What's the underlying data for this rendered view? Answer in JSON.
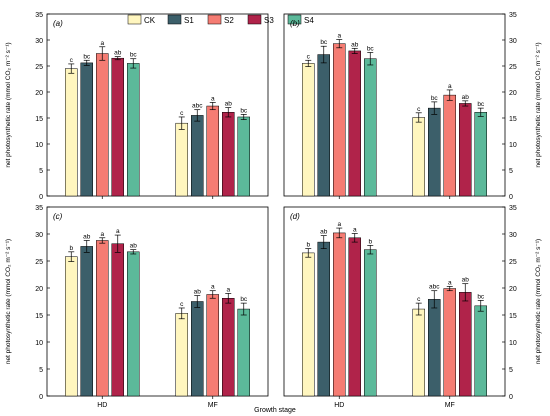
{
  "legend": {
    "placement": "top-center",
    "entries": [
      {
        "name": "CK",
        "color": "#fff6bf"
      },
      {
        "name": "S1",
        "color": "#3c5f6a"
      },
      {
        "name": "S2",
        "color": "#f57c73"
      },
      {
        "name": "S3",
        "color": "#b0234a"
      },
      {
        "name": "S4",
        "color": "#5cb99a"
      }
    ]
  },
  "xlabel": "Growth stage",
  "ylabel": "net photosynthetic rate (mmol CO₂ m⁻² s⁻¹)",
  "chart_data": [
    {
      "type": "bar",
      "panel": "(a)",
      "categories": [
        "HD",
        "MF"
      ],
      "ylim": [
        0,
        35
      ],
      "yticks": [
        0,
        5,
        10,
        15,
        20,
        25,
        30,
        35
      ],
      "series": [
        {
          "name": "CK",
          "values": [
            24.5,
            14.0
          ],
          "errors": [
            0.9,
            1.2
          ],
          "letters": [
            "c",
            "c"
          ]
        },
        {
          "name": "S1",
          "values": [
            25.6,
            15.5
          ],
          "errors": [
            0.5,
            1.1
          ],
          "letters": [
            "bc",
            "abc"
          ]
        },
        {
          "name": "S2",
          "values": [
            27.4,
            17.3
          ],
          "errors": [
            1.3,
            0.7
          ],
          "letters": [
            "a",
            "a"
          ]
        },
        {
          "name": "S3",
          "values": [
            26.5,
            16.1
          ],
          "errors": [
            0.3,
            0.9
          ],
          "letters": [
            "ab",
            "ab"
          ]
        },
        {
          "name": "S4",
          "values": [
            25.5,
            15.2
          ],
          "errors": [
            0.9,
            0.5
          ],
          "letters": [
            "bc",
            "bc"
          ]
        }
      ]
    },
    {
      "type": "bar",
      "panel": "(b)",
      "categories": [
        "HD",
        "MF"
      ],
      "ylim": [
        0,
        35
      ],
      "yticks": [
        0,
        5,
        10,
        15,
        20,
        25,
        30,
        35
      ],
      "series": [
        {
          "name": "CK",
          "values": [
            25.5,
            15.1
          ],
          "errors": [
            0.6,
            0.9
          ],
          "letters": [
            "c",
            "c"
          ]
        },
        {
          "name": "S1",
          "values": [
            27.2,
            16.9
          ],
          "errors": [
            1.6,
            1.2
          ],
          "letters": [
            "bc",
            "bc"
          ]
        },
        {
          "name": "S2",
          "values": [
            29.3,
            19.4
          ],
          "errors": [
            0.8,
            1.0
          ],
          "letters": [
            "a",
            "a"
          ]
        },
        {
          "name": "S3",
          "values": [
            27.9,
            17.8
          ],
          "errors": [
            0.5,
            0.5
          ],
          "letters": [
            "ab",
            "ab"
          ]
        },
        {
          "name": "S4",
          "values": [
            26.4,
            16.1
          ],
          "errors": [
            1.2,
            0.8
          ],
          "letters": [
            "bc",
            "bc"
          ]
        }
      ]
    },
    {
      "type": "bar",
      "panel": "(c)",
      "categories": [
        "HD",
        "MF"
      ],
      "ylim": [
        0,
        35
      ],
      "yticks": [
        0,
        5,
        10,
        15,
        20,
        25,
        30,
        35
      ],
      "series": [
        {
          "name": "CK",
          "values": [
            25.8,
            15.3
          ],
          "errors": [
            0.9,
            1.0
          ],
          "letters": [
            "b",
            "c"
          ]
        },
        {
          "name": "S1",
          "values": [
            27.7,
            17.5
          ],
          "errors": [
            1.1,
            1.1
          ],
          "letters": [
            "ab",
            "ab"
          ]
        },
        {
          "name": "S2",
          "values": [
            28.8,
            18.8
          ],
          "errors": [
            0.5,
            0.7
          ],
          "letters": [
            "a",
            "a"
          ]
        },
        {
          "name": "S3",
          "values": [
            28.2,
            18.1
          ],
          "errors": [
            1.6,
            0.9
          ],
          "letters": [
            "a",
            "a"
          ]
        },
        {
          "name": "S4",
          "values": [
            26.7,
            16.1
          ],
          "errors": [
            0.4,
            1.1
          ],
          "letters": [
            "ab",
            "bc"
          ]
        }
      ]
    },
    {
      "type": "bar",
      "panel": "(d)",
      "categories": [
        "HD",
        "MF"
      ],
      "ylim": [
        0,
        35
      ],
      "yticks": [
        0,
        5,
        10,
        15,
        20,
        25,
        30,
        35
      ],
      "series": [
        {
          "name": "CK",
          "values": [
            26.5,
            16.1
          ],
          "errors": [
            0.8,
            1.1
          ],
          "letters": [
            "b",
            "c"
          ]
        },
        {
          "name": "S1",
          "values": [
            28.5,
            17.9
          ],
          "errors": [
            1.2,
            1.6
          ],
          "letters": [
            "ab",
            "abc"
          ]
        },
        {
          "name": "S2",
          "values": [
            30.2,
            19.9
          ],
          "errors": [
            0.9,
            0.4
          ],
          "letters": [
            "a",
            "a"
          ]
        },
        {
          "name": "S3",
          "values": [
            29.3,
            19.2
          ],
          "errors": [
            0.8,
            1.6
          ],
          "letters": [
            "a",
            "ab"
          ]
        },
        {
          "name": "S4",
          "values": [
            27.1,
            16.7
          ],
          "errors": [
            0.8,
            1.0
          ],
          "letters": [
            "b",
            "bc"
          ]
        }
      ]
    }
  ]
}
